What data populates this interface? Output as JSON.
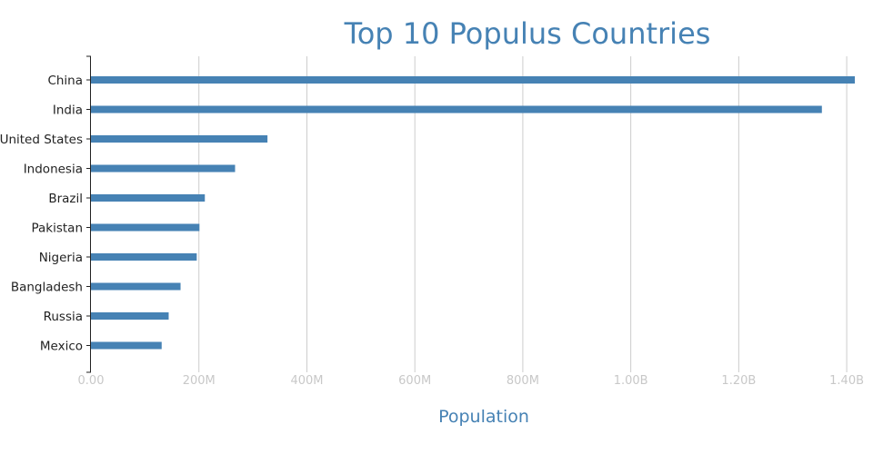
{
  "chart_data": {
    "type": "bar",
    "orientation": "horizontal",
    "title": "Top 10 Populus Countries",
    "xlabel": "Population",
    "ylabel": "",
    "categories": [
      "China",
      "India",
      "United States",
      "Indonesia",
      "Brazil",
      "Pakistan",
      "Nigeria",
      "Bangladesh",
      "Russia",
      "Mexico"
    ],
    "values": [
      1415000000,
      1354000000,
      327000000,
      267000000,
      211000000,
      201000000,
      196000000,
      166000000,
      144000000,
      131000000
    ],
    "xlim": [
      0,
      1415000000
    ],
    "xticks": [
      0,
      200000000,
      400000000,
      600000000,
      800000000,
      1000000000,
      1200000000,
      1400000000
    ],
    "xtick_labels": [
      "0.00",
      "200M",
      "400M",
      "600M",
      "800M",
      "1.00B",
      "1.20B",
      "1.40B"
    ],
    "grid": "vertical",
    "bar_color": "#4682b4"
  }
}
